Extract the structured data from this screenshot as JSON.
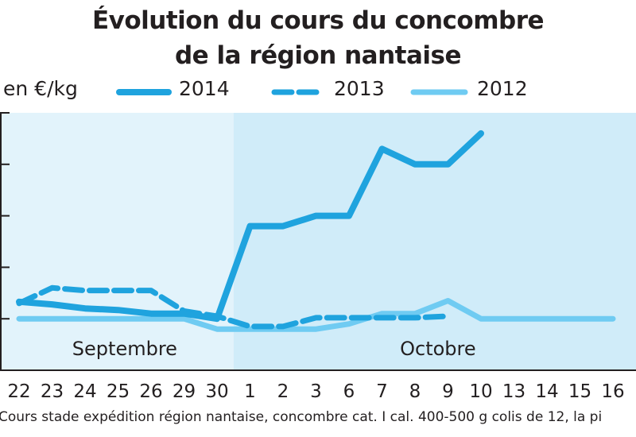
{
  "chart_data": {
    "type": "line",
    "title_lines": [
      "Évolution du cours du concombre",
      "de la région nantaise"
    ],
    "unit_label": "en €/kg",
    "categories": [
      "22",
      "23",
      "24",
      "25",
      "26",
      "29",
      "30",
      "1",
      "2",
      "3",
      "6",
      "7",
      "8",
      "9",
      "10",
      "13",
      "14",
      "15",
      "16"
    ],
    "period_labels": [
      "Septembre",
      "Octobre"
    ],
    "series": [
      {
        "name": "2014",
        "style": "solid-thick",
        "color": "#1fa3de",
        "values": [
          0.33,
          0.28,
          0.2,
          0.17,
          0.1,
          0.1,
          0.0,
          1.8,
          1.8,
          2.0,
          2.0,
          3.3,
          3.0,
          3.0,
          3.6,
          null,
          null,
          null,
          null
        ]
      },
      {
        "name": "2013",
        "style": "dashed",
        "color": "#1fa3de",
        "values": [
          0.3,
          0.6,
          0.55,
          0.55,
          0.55,
          0.15,
          0.05,
          -0.15,
          -0.15,
          0.02,
          0.02,
          0.02,
          0.02,
          0.05,
          null,
          null,
          null,
          null,
          null
        ]
      },
      {
        "name": "2012",
        "style": "solid-light",
        "color": "#6fcbf2",
        "values": [
          0.0,
          0.0,
          0.0,
          0.0,
          0.0,
          0.0,
          -0.2,
          -0.2,
          -0.2,
          -0.2,
          -0.1,
          0.1,
          0.1,
          0.35,
          0.0,
          0.0,
          0.0,
          0.0,
          0.0
        ]
      }
    ],
    "ylim": [
      -1.0,
      4.0
    ],
    "y_gridlines": [
      0,
      1,
      2,
      3,
      4
    ],
    "legend_placement": "top",
    "background_colors": {
      "septembre": "#e2f3fb",
      "octobre": "#d0ecf9"
    },
    "footnote": "Cours stade expédition région nantaise, concombre cat. I cal. 400-500 g colis de 12, la pi"
  }
}
